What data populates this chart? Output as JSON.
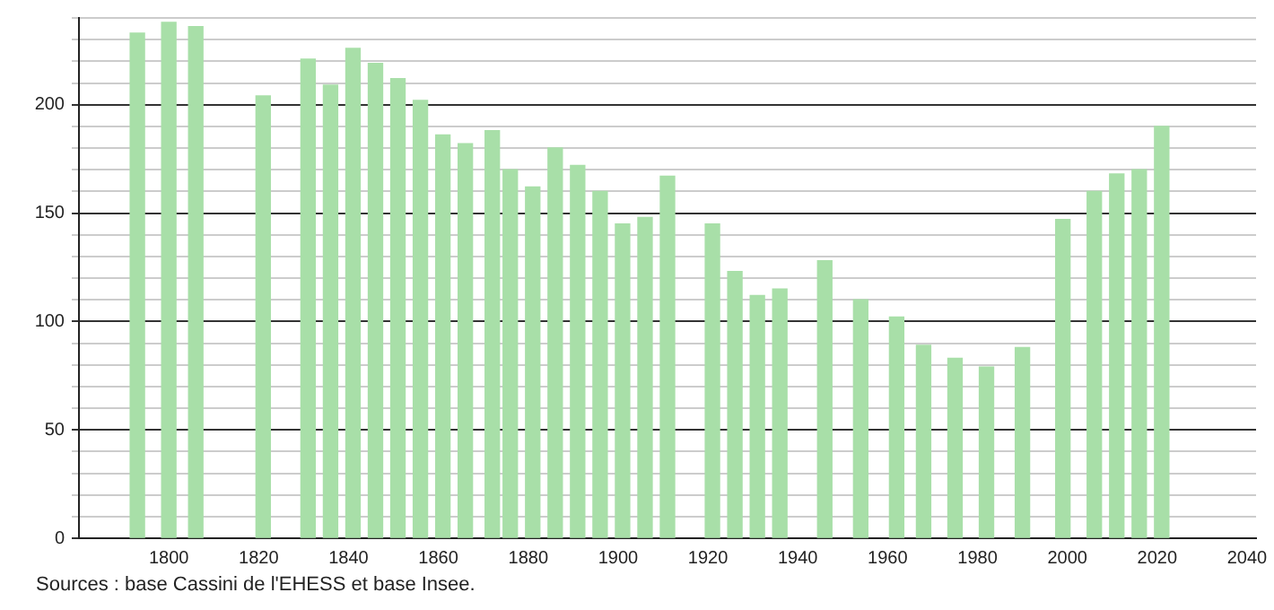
{
  "chart_data": {
    "type": "bar",
    "x": [
      1793,
      1800,
      1806,
      1821,
      1831,
      1836,
      1841,
      1846,
      1851,
      1856,
      1861,
      1866,
      1872,
      1876,
      1881,
      1886,
      1891,
      1896,
      1901,
      1906,
      1911,
      1921,
      1926,
      1931,
      1936,
      1946,
      1954,
      1962,
      1968,
      1975,
      1982,
      1990,
      1999,
      2006,
      2011,
      2016,
      2021
    ],
    "values": [
      233,
      238,
      236,
      204,
      221,
      209,
      226,
      219,
      212,
      202,
      186,
      182,
      188,
      170,
      162,
      180,
      172,
      160,
      145,
      148,
      167,
      145,
      123,
      112,
      115,
      128,
      110,
      102,
      89,
      83,
      79,
      88,
      147,
      160,
      168,
      170,
      190
    ],
    "color": "#a8dfa8",
    "xlim": [
      1780,
      2042
    ],
    "xticks": [
      1800,
      1820,
      1840,
      1860,
      1880,
      1900,
      1920,
      1940,
      1960,
      1980,
      2000,
      2020,
      2040
    ],
    "ylim": [
      0,
      240
    ],
    "yticks": [
      0,
      {
        "value": 10,
        "label": null
      },
      {
        "value": 20,
        "label": null
      },
      {
        "value": 30,
        "label": null
      },
      {
        "value": 40,
        "label": null
      },
      50,
      {
        "value": 60,
        "label": null
      },
      {
        "value": 70,
        "label": null
      },
      {
        "value": 80,
        "label": null
      },
      {
        "value": 90,
        "label": null
      },
      100,
      {
        "value": 110,
        "label": null
      },
      {
        "value": 120,
        "label": null
      },
      {
        "value": 130,
        "label": null
      },
      {
        "value": 140,
        "label": null
      },
      150,
      {
        "value": 160,
        "label": null
      },
      {
        "value": 170,
        "label": null
      },
      {
        "value": 180,
        "label": null
      },
      {
        "value": 190,
        "label": null
      },
      200,
      {
        "value": 210,
        "label": null
      },
      {
        "value": 220,
        "label": null
      },
      {
        "value": 230,
        "label": null
      },
      {
        "value": 240,
        "label": null
      }
    ],
    "grid": "y",
    "legend": false,
    "annotations": [
      "Sources : base Cassini de l'EHESS et base Insee."
    ]
  }
}
